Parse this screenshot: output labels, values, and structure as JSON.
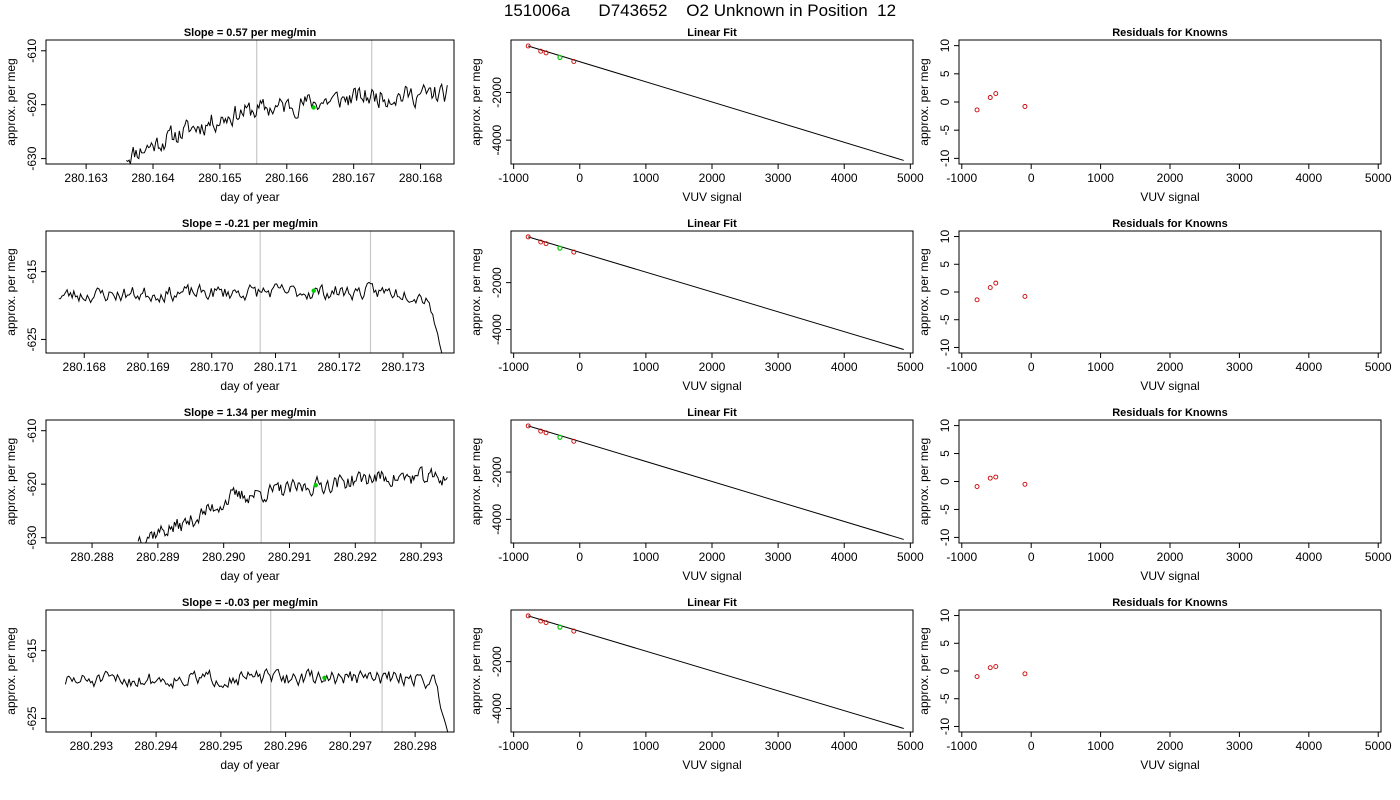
{
  "page": {
    "title": "151006a      D743652    O2 Unknown in Position  12"
  },
  "colors": {
    "line": "#000000",
    "marker_green": "#00cc00",
    "marker_red": "#cc0000",
    "vline": "#c8c8c8"
  },
  "chart_data": [
    {
      "type": "line",
      "row": 0,
      "col": 0,
      "title": "Slope =  0.57  per meg/min",
      "xlabel": "day of year",
      "ylabel": "approx. per meg",
      "xlim": [
        280.1624,
        280.1685
      ],
      "ylim": [
        -631,
        -608
      ],
      "xticks": [
        280.163,
        280.164,
        280.165,
        280.166,
        280.167,
        280.168
      ],
      "xtick_labels": [
        "280.163",
        "280.164",
        "280.165",
        "280.166",
        "280.167",
        "280.168"
      ],
      "yticks": [
        -630,
        -620,
        -610
      ],
      "ytick_labels": [
        "-630",
        "-620",
        "-610"
      ],
      "vlines": [
        280.16555,
        280.16727
      ],
      "series_start": 280.1636,
      "series_end": 280.1684,
      "series_min": -632.0,
      "series_max": -613.8,
      "series_trend": [
        [
          0,
          -629.5
        ],
        [
          0.2,
          -624.5
        ],
        [
          0.35,
          -621.5
        ],
        [
          0.55,
          -619.8
        ],
        [
          0.75,
          -618.5
        ],
        [
          1,
          -618.0
        ]
      ],
      "series_noise": 2.2,
      "series_seed": 11,
      "green_point": [
        280.1664,
        -620.5
      ]
    },
    {
      "type": "scatter",
      "row": 0,
      "col": 1,
      "title": "Linear Fit",
      "xlabel": "VUV signal",
      "ylabel": "approx. per meg",
      "xlim": [
        -1040,
        5040
      ],
      "ylim": [
        -5000,
        200
      ],
      "xticks": [
        -1000,
        0,
        1000,
        2000,
        3000,
        4000,
        5000
      ],
      "xtick_labels": [
        "-1000",
        "0",
        "1000",
        "2000",
        "3000",
        "4000",
        "5000"
      ],
      "yticks": [
        -4000,
        -2000
      ],
      "ytick_labels": [
        "-4000",
        "-2000"
      ],
      "fit_line": [
        [
          -780,
          -50
        ],
        [
          4900,
          -4850
        ]
      ],
      "knowns": [
        [
          -780,
          -50
        ],
        [
          -590,
          -270
        ],
        [
          -510,
          -340
        ],
        [
          -90,
          -700
        ]
      ],
      "unknown": [
        -300,
        -530
      ]
    },
    {
      "type": "scatter",
      "row": 0,
      "col": 2,
      "title": "Residuals for Knowns",
      "xlabel": "VUV signal",
      "ylabel": "approx. per meg",
      "xlim": [
        -1040,
        5040
      ],
      "ylim": [
        -11,
        11
      ],
      "xticks": [
        -1000,
        0,
        1000,
        2000,
        3000,
        4000,
        5000
      ],
      "xtick_labels": [
        "-1000",
        "0",
        "1000",
        "2000",
        "3000",
        "4000",
        "5000"
      ],
      "yticks": [
        -10,
        -5,
        0,
        5,
        10
      ],
      "ytick_labels": [
        "-10",
        "-5",
        "0",
        "5",
        "10"
      ],
      "residuals": [
        [
          -780,
          -1.4
        ],
        [
          -590,
          0.8
        ],
        [
          -510,
          1.5
        ],
        [
          -90,
          -0.8
        ]
      ]
    },
    {
      "type": "line",
      "row": 1,
      "col": 0,
      "title": "Slope =  -0.21  per meg/min",
      "xlabel": "day of year",
      "ylabel": "approx. per meg",
      "xlim": [
        280.1674,
        280.1738
      ],
      "ylim": [
        -627,
        -609
      ],
      "xticks": [
        280.168,
        280.169,
        280.17,
        280.171,
        280.172,
        280.173
      ],
      "xtick_labels": [
        "280.168",
        "280.169",
        "280.170",
        "280.171",
        "280.172",
        "280.173"
      ],
      "yticks": [
        -625,
        -615
      ],
      "ytick_labels": [
        "-625",
        "-615"
      ],
      "vlines": [
        280.17076,
        280.17249
      ],
      "series_start": 280.1676,
      "series_end": 280.17365,
      "series_min": -628.5,
      "series_max": -613.5,
      "series_trend": [
        [
          0,
          -618.5
        ],
        [
          0.5,
          -618.0
        ],
        [
          0.9,
          -618.0
        ],
        [
          1,
          -619.5
        ]
      ],
      "series_noise": 1.3,
      "series_seed": 23,
      "green_point": [
        280.1716,
        -617.8
      ],
      "tail_drop": -628.5
    },
    {
      "type": "scatter",
      "row": 1,
      "col": 1,
      "title": "Linear Fit",
      "xlabel": "VUV signal",
      "ylabel": "approx. per meg",
      "xlim": [
        -1040,
        5040
      ],
      "ylim": [
        -5000,
        200
      ],
      "xticks": [
        -1000,
        0,
        1000,
        2000,
        3000,
        4000,
        5000
      ],
      "xtick_labels": [
        "-1000",
        "0",
        "1000",
        "2000",
        "3000",
        "4000",
        "5000"
      ],
      "yticks": [
        -4000,
        -2000
      ],
      "ytick_labels": [
        "-4000",
        "-2000"
      ],
      "fit_line": [
        [
          -780,
          -50
        ],
        [
          4900,
          -4850
        ]
      ],
      "knowns": [
        [
          -780,
          -50
        ],
        [
          -590,
          -270
        ],
        [
          -510,
          -340
        ],
        [
          -90,
          -700
        ]
      ],
      "unknown": [
        -300,
        -530
      ]
    },
    {
      "type": "scatter",
      "row": 1,
      "col": 2,
      "title": "Residuals for Knowns",
      "xlabel": "VUV signal",
      "ylabel": "approx. per meg",
      "xlim": [
        -1040,
        5040
      ],
      "ylim": [
        -11,
        11
      ],
      "xticks": [
        -1000,
        0,
        1000,
        2000,
        3000,
        4000,
        5000
      ],
      "xtick_labels": [
        "-1000",
        "0",
        "1000",
        "2000",
        "3000",
        "4000",
        "5000"
      ],
      "yticks": [
        -10,
        -5,
        0,
        5,
        10
      ],
      "ytick_labels": [
        "-10",
        "-5",
        "0",
        "5",
        "10"
      ],
      "residuals": [
        [
          -780,
          -1.4
        ],
        [
          -590,
          0.8
        ],
        [
          -510,
          1.6
        ],
        [
          -90,
          -0.8
        ]
      ]
    },
    {
      "type": "line",
      "row": 2,
      "col": 0,
      "title": "Slope =  1.34  per meg/min",
      "xlabel": "day of year",
      "ylabel": "approx. per meg",
      "xlim": [
        280.2873,
        280.2935
      ],
      "ylim": [
        -631,
        -608
      ],
      "xticks": [
        280.288,
        280.289,
        280.29,
        280.291,
        280.292,
        280.293
      ],
      "xtick_labels": [
        "280.288",
        "280.289",
        "280.290",
        "280.291",
        "280.292",
        "280.293"
      ],
      "yticks": [
        -630,
        -620,
        -610
      ],
      "ytick_labels": [
        "-630",
        "-620",
        "-610"
      ],
      "vlines": [
        280.29057,
        280.2923
      ],
      "series_start": 280.2887,
      "series_end": 280.2934,
      "series_min": -632.0,
      "series_max": -615.0,
      "series_trend": [
        [
          0,
          -630.0
        ],
        [
          0.15,
          -627.5
        ],
        [
          0.3,
          -622.5
        ],
        [
          0.55,
          -620.5
        ],
        [
          0.75,
          -618.8
        ],
        [
          1,
          -618.8
        ]
      ],
      "series_noise": 1.8,
      "series_seed": 37,
      "green_point": [
        280.2914,
        -620.2
      ]
    },
    {
      "type": "scatter",
      "row": 2,
      "col": 1,
      "title": "Linear Fit",
      "xlabel": "VUV signal",
      "ylabel": "approx. per meg",
      "xlim": [
        -1040,
        5040
      ],
      "ylim": [
        -5000,
        200
      ],
      "xticks": [
        -1000,
        0,
        1000,
        2000,
        3000,
        4000,
        5000
      ],
      "xtick_labels": [
        "-1000",
        "0",
        "1000",
        "2000",
        "3000",
        "4000",
        "5000"
      ],
      "yticks": [
        -4000,
        -2000
      ],
      "ytick_labels": [
        "-4000",
        "-2000"
      ],
      "fit_line": [
        [
          -780,
          -50
        ],
        [
          4900,
          -4850
        ]
      ],
      "knowns": [
        [
          -780,
          -50
        ],
        [
          -590,
          -270
        ],
        [
          -510,
          -340
        ],
        [
          -90,
          -700
        ]
      ],
      "unknown": [
        -300,
        -530
      ]
    },
    {
      "type": "scatter",
      "row": 2,
      "col": 2,
      "title": "Residuals for Knowns",
      "xlabel": "VUV signal",
      "ylabel": "approx. per meg",
      "xlim": [
        -1040,
        5040
      ],
      "ylim": [
        -11,
        11
      ],
      "xticks": [
        -1000,
        0,
        1000,
        2000,
        3000,
        4000,
        5000
      ],
      "xtick_labels": [
        "-1000",
        "0",
        "1000",
        "2000",
        "3000",
        "4000",
        "5000"
      ],
      "yticks": [
        -10,
        -5,
        0,
        5,
        10
      ],
      "ytick_labels": [
        "-10",
        "-5",
        "0",
        "5",
        "10"
      ],
      "residuals": [
        [
          -780,
          -0.9
        ],
        [
          -590,
          0.6
        ],
        [
          -510,
          0.8
        ],
        [
          -90,
          -0.5
        ]
      ]
    },
    {
      "type": "line",
      "row": 3,
      "col": 0,
      "title": "Slope =  -0.03  per meg/min",
      "xlabel": "day of year",
      "ylabel": "approx. per meg",
      "xlim": [
        280.2923,
        280.2986
      ],
      "ylim": [
        -627,
        -609
      ],
      "xticks": [
        280.293,
        280.294,
        280.295,
        280.296,
        280.297,
        280.298
      ],
      "xtick_labels": [
        "280.293",
        "280.294",
        "280.295",
        "280.296",
        "280.297",
        "280.298"
      ],
      "yticks": [
        -625,
        -615
      ],
      "ytick_labels": [
        "-625",
        "-615"
      ],
      "vlines": [
        280.29577,
        280.29749
      ],
      "series_start": 280.2926,
      "series_end": 280.29855,
      "series_min": -628.5,
      "series_max": -613.5,
      "series_trend": [
        [
          0,
          -619.5
        ],
        [
          0.5,
          -619.0
        ],
        [
          0.9,
          -619.0
        ],
        [
          1,
          -620.0
        ]
      ],
      "series_noise": 1.3,
      "series_seed": 51,
      "green_point": [
        280.2966,
        -619.0
      ],
      "tail_drop": -628.5
    },
    {
      "type": "scatter",
      "row": 3,
      "col": 1,
      "title": "Linear Fit",
      "xlabel": "VUV signal",
      "ylabel": "approx. per meg",
      "xlim": [
        -1040,
        5040
      ],
      "ylim": [
        -5000,
        200
      ],
      "xticks": [
        -1000,
        0,
        1000,
        2000,
        3000,
        4000,
        5000
      ],
      "xtick_labels": [
        "-1000",
        "0",
        "1000",
        "2000",
        "3000",
        "4000",
        "5000"
      ],
      "yticks": [
        -4000,
        -2000
      ],
      "ytick_labels": [
        "-4000",
        "-2000"
      ],
      "fit_line": [
        [
          -780,
          -50
        ],
        [
          4900,
          -4850
        ]
      ],
      "knowns": [
        [
          -780,
          -50
        ],
        [
          -590,
          -270
        ],
        [
          -510,
          -340
        ],
        [
          -90,
          -700
        ]
      ],
      "unknown": [
        -300,
        -530
      ]
    },
    {
      "type": "scatter",
      "row": 3,
      "col": 2,
      "title": "Residuals for Knowns",
      "xlabel": "VUV signal",
      "ylabel": "approx. per meg",
      "xlim": [
        -1040,
        5040
      ],
      "ylim": [
        -11,
        11
      ],
      "xticks": [
        -1000,
        0,
        1000,
        2000,
        3000,
        4000,
        5000
      ],
      "xtick_labels": [
        "-1000",
        "0",
        "1000",
        "2000",
        "3000",
        "4000",
        "5000"
      ],
      "yticks": [
        -10,
        -5,
        0,
        5,
        10
      ],
      "ytick_labels": [
        "-10",
        "-5",
        "0",
        "5",
        "10"
      ],
      "residuals": [
        [
          -780,
          -1.0
        ],
        [
          -590,
          0.6
        ],
        [
          -510,
          0.8
        ],
        [
          -90,
          -0.5
        ]
      ]
    }
  ]
}
